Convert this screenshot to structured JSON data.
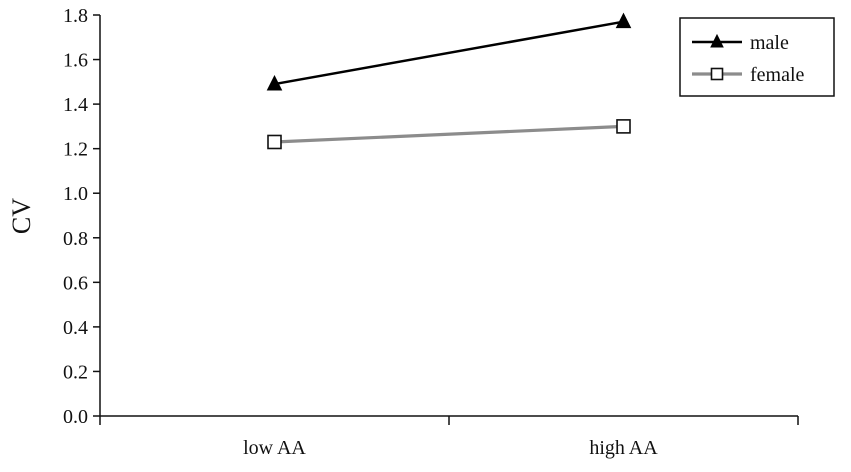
{
  "chart_data": {
    "type": "line",
    "categories": [
      "low AA",
      "high AA"
    ],
    "series": [
      {
        "name": "male",
        "values": [
          1.49,
          1.77
        ],
        "color": "#000000",
        "marker": "filled-triangle"
      },
      {
        "name": "female",
        "values": [
          1.23,
          1.3
        ],
        "color": "#8c8c8c",
        "marker": "open-square"
      }
    ],
    "title": "",
    "xlabel": "",
    "ylabel": "CV",
    "ylim": [
      0.0,
      1.8
    ],
    "yticks": [
      "0.0",
      "0.2",
      "0.4",
      "0.6",
      "0.8",
      "1.0",
      "1.2",
      "1.4",
      "1.6",
      "1.8"
    ],
    "grid": false,
    "legend_position": "top-right"
  }
}
